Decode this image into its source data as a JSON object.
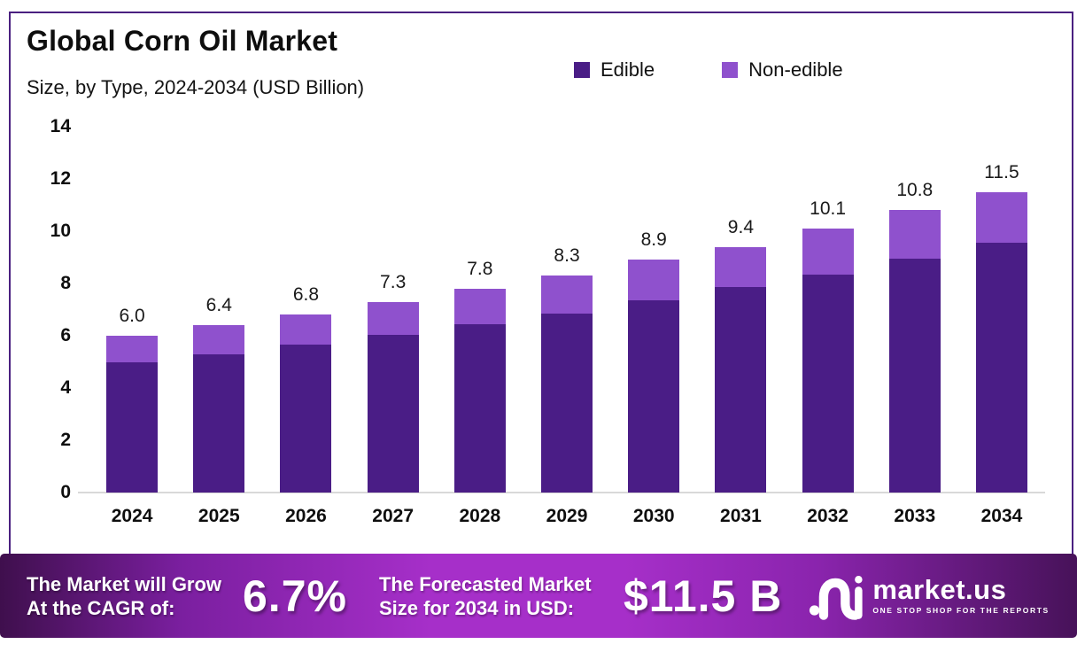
{
  "header": {
    "title": "Global Corn Oil Market",
    "subtitle": "Size, by Type, 2024-2034 (USD Billion)"
  },
  "legend": {
    "items": [
      {
        "label": "Edible",
        "color": "#4a1d86"
      },
      {
        "label": "Non-edible",
        "color": "#8f51cd"
      }
    ]
  },
  "chart_data": {
    "type": "bar",
    "stacked": true,
    "title": "Global Corn Oil Market",
    "subtitle": "Size, by Type, 2024-2034 (USD Billion)",
    "categories": [
      "2024",
      "2025",
      "2026",
      "2027",
      "2028",
      "2029",
      "2030",
      "2031",
      "2032",
      "2033",
      "2034"
    ],
    "series": [
      {
        "name": "Edible",
        "color": "#4a1d86",
        "values": [
          5.0,
          5.3,
          5.65,
          6.05,
          6.45,
          6.85,
          7.35,
          7.85,
          8.35,
          8.95,
          9.55
        ]
      },
      {
        "name": "Non-edible",
        "color": "#8f51cd",
        "values": [
          1.0,
          1.1,
          1.15,
          1.25,
          1.35,
          1.45,
          1.55,
          1.55,
          1.75,
          1.85,
          1.95
        ]
      }
    ],
    "totals": [
      6.0,
      6.4,
      6.8,
      7.3,
      7.8,
      8.3,
      8.9,
      9.4,
      10.1,
      10.8,
      11.5
    ],
    "total_labels": [
      "6.0",
      "6.4",
      "6.8",
      "7.3",
      "7.8",
      "8.3",
      "8.9",
      "9.4",
      "10.1",
      "10.8",
      "11.5"
    ],
    "xlabel": "",
    "ylabel": "",
    "ylim": [
      0,
      14
    ],
    "y_ticks": [
      0,
      2,
      4,
      6,
      8,
      10,
      12,
      14
    ],
    "grid": false,
    "legend_position": "top-right"
  },
  "banner": {
    "cagr_label_line1": "The Market will Grow",
    "cagr_label_line2": "At the CAGR of:",
    "cagr_value": "6.7%",
    "forecast_label_line1": "The Forecasted Market",
    "forecast_label_line2": "Size for 2034 in USD:",
    "forecast_value": "$11.5 B",
    "logo_text": "market.us",
    "logo_tagline": "ONE STOP SHOP FOR THE REPORTS"
  },
  "colors": {
    "frame_border": "#4a2080",
    "edible_bar": "#4a1d86",
    "non_edible_bar": "#8f51cd",
    "baseline": "#d9d9d9",
    "banner_gradient_edge": "#3f0f4d",
    "banner_gradient_center": "#a62fc9",
    "text_dark": "#0e0e0e",
    "text_light": "#ffffff"
  }
}
